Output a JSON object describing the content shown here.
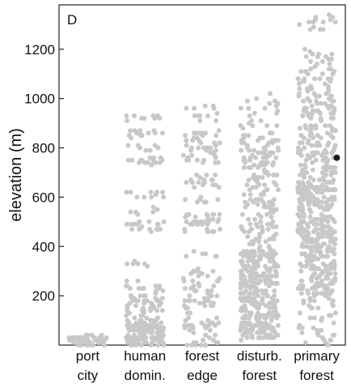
{
  "chart_data": {
    "type": "scatter",
    "panel_label": "D",
    "xlabel": "",
    "ylabel": "elevation (m)",
    "ylim": [
      0,
      1380
    ],
    "yticks": [
      200,
      400,
      600,
      800,
      1000,
      1200
    ],
    "grid": false,
    "point_color": "#c8c8c8",
    "highlight_color": "#1a1a1a",
    "categories": [
      {
        "lines": [
          "port",
          "city"
        ],
        "elev_min": 0,
        "elev_max": 50,
        "bands": [
          [
            0,
            40,
            60
          ]
        ]
      },
      {
        "lines": [
          "human",
          "domin."
        ],
        "elev_min": 0,
        "elev_max": 930,
        "bands": [
          [
            0,
            100,
            140
          ],
          [
            100,
            200,
            45
          ],
          [
            200,
            270,
            15
          ],
          [
            320,
            340,
            6
          ],
          [
            460,
            500,
            20
          ],
          [
            530,
            560,
            6
          ],
          [
            590,
            620,
            10
          ],
          [
            730,
            760,
            16
          ],
          [
            790,
            810,
            8
          ],
          [
            840,
            870,
            14
          ],
          [
            900,
            930,
            10
          ]
        ]
      },
      {
        "lines": [
          "forest",
          "edge"
        ],
        "elev_min": 0,
        "elev_max": 970,
        "bands": [
          [
            0,
            150,
            40
          ],
          [
            150,
            310,
            50
          ],
          [
            360,
            380,
            6
          ],
          [
            460,
            530,
            35
          ],
          [
            580,
            600,
            8
          ],
          [
            620,
            700,
            18
          ],
          [
            740,
            870,
            45
          ],
          [
            900,
            970,
            12
          ]
        ]
      },
      {
        "lines": [
          "disturb.",
          "forest"
        ],
        "elev_min": 20,
        "elev_max": 1020,
        "bands": [
          [
            20,
            380,
            320
          ],
          [
            380,
            560,
            60
          ],
          [
            560,
            720,
            55
          ],
          [
            720,
            860,
            60
          ],
          [
            880,
            1020,
            22
          ]
        ]
      },
      {
        "lines": [
          "primary",
          "forest"
        ],
        "elev_min": 0,
        "elev_max": 1340,
        "bands": [
          [
            0,
            200,
            40
          ],
          [
            200,
            650,
            320
          ],
          [
            650,
            900,
            110
          ],
          [
            900,
            1200,
            90
          ],
          [
            1280,
            1340,
            14
          ]
        ]
      }
    ],
    "highlight": {
      "category": "primary forest",
      "elevation": 760
    }
  }
}
